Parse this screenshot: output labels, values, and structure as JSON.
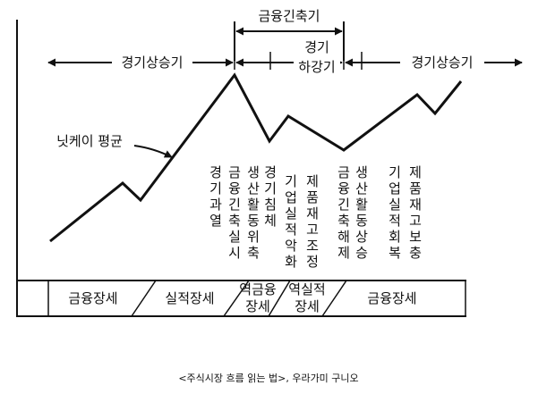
{
  "diagram": {
    "labels": {
      "tightening": "금융긴축기",
      "boom_left": "경기상승기",
      "boom_right": "경기상승기",
      "recession_1": "경기",
      "recession_2": "하강기",
      "nikkei": "닛케이 평균"
    },
    "vertical_notes": [
      "경기과열",
      "금융긴축실시",
      "생산활동위축",
      "경기침체",
      "기업실적악화",
      "제품재고조정",
      "금융긴축해제",
      "생산활동상승",
      "기업실적회복",
      "제품재고보충"
    ],
    "phases": [
      "금융장세",
      "실적장세",
      "역금융장세",
      "역실적장세",
      "금융장세"
    ],
    "colors": {
      "ink": "#111111",
      "background": "#ffffff"
    }
  },
  "caption": "<주식시장 흐름 읽는 법>, 우라가미 구니오"
}
